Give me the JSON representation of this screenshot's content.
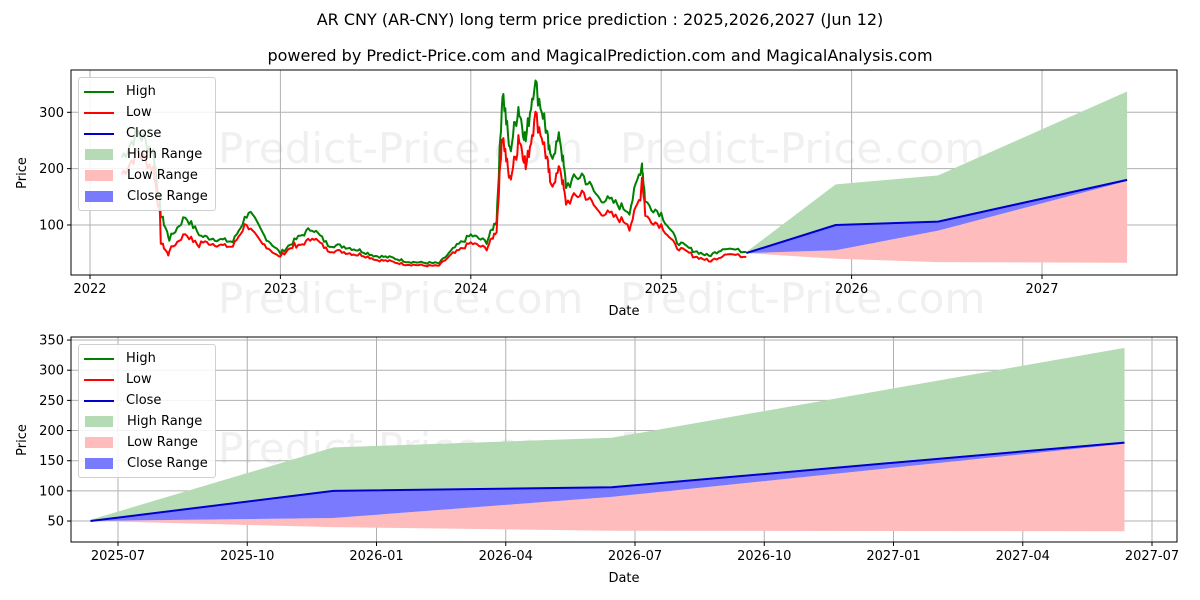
{
  "header": {
    "title": "AR CNY (AR-CNY) long term price prediction : 2025,2026,2027 (Jun 12)",
    "subtitle": "powered by Predict-Price.com and MagicalPrediction.com and MagicalAnalysis.com"
  },
  "watermark": "Predict-Price.com",
  "colors": {
    "high": "#008000",
    "low": "#ff0000",
    "close": "#0000cd",
    "high_range": "#a8d5a8",
    "low_range": "#ffb0b0",
    "close_range": "#7070ff"
  },
  "legend": [
    {
      "label": "High",
      "type": "line",
      "color": "#008000"
    },
    {
      "label": "Low",
      "type": "line",
      "color": "#ff0000"
    },
    {
      "label": "Close",
      "type": "line",
      "color": "#0000cd"
    },
    {
      "label": "High Range",
      "type": "area",
      "color": "#b5dbb5"
    },
    {
      "label": "Low Range",
      "type": "area",
      "color": "#ffbcbc"
    },
    {
      "label": "Close Range",
      "type": "area",
      "color": "#7a7aff"
    }
  ],
  "chart_data": [
    {
      "type": "line",
      "title": "AR CNY (AR-CNY) long term price prediction : 2025,2026,2027 (Jun 12)",
      "xlabel": "Date",
      "ylabel": "Price",
      "x_ticks": [
        "2022",
        "2023",
        "2024",
        "2025",
        "2026",
        "2027"
      ],
      "y_ticks": [
        100,
        200,
        300
      ],
      "ylim": [
        10,
        370
      ],
      "xlim": [
        "2021-11",
        "2027-10"
      ],
      "grid": true,
      "legend_position": "upper left",
      "history": {
        "dates": [
          "2022-03",
          "2022-04",
          "2022-05",
          "2022-05-15",
          "2022-06",
          "2022-07",
          "2022-08",
          "2022-09",
          "2022-10",
          "2022-11",
          "2022-12",
          "2023-01",
          "2023-02",
          "2023-03",
          "2023-04",
          "2023-05",
          "2023-06",
          "2023-07",
          "2023-08",
          "2023-09",
          "2023-10",
          "2023-11",
          "2023-12",
          "2024-01",
          "2024-02",
          "2024-02-20",
          "2024-03",
          "2024-03-15",
          "2024-04",
          "2024-04-15",
          "2024-05",
          "2024-05-20",
          "2024-06",
          "2024-06-20",
          "2024-07",
          "2024-08",
          "2024-09",
          "2024-10",
          "2024-11",
          "2024-11-25",
          "2024-12",
          "2025-01",
          "2025-02",
          "2025-03",
          "2025-04",
          "2025-05",
          "2025-06-12"
        ],
        "high": [
          220,
          265,
          230,
          120,
          75,
          115,
          80,
          75,
          70,
          125,
          80,
          50,
          75,
          95,
          65,
          62,
          55,
          45,
          42,
          35,
          33,
          32,
          60,
          82,
          70,
          110,
          340,
          230,
          310,
          250,
          355,
          290,
          220,
          255,
          170,
          190,
          150,
          140,
          125,
          210,
          140,
          120,
          70,
          55,
          45,
          60,
          52
        ],
        "low": [
          190,
          230,
          200,
          70,
          55,
          85,
          70,
          65,
          62,
          95,
          65,
          45,
          60,
          80,
          55,
          52,
          48,
          38,
          35,
          30,
          28,
          28,
          50,
          68,
          58,
          90,
          260,
          180,
          260,
          200,
          300,
          240,
          170,
          205,
          140,
          160,
          125,
          115,
          95,
          185,
          115,
          100,
          60,
          45,
          35,
          50,
          48
        ]
      },
      "forecast": {
        "dates": [
          "2025-06-12",
          "2025-12-01",
          "2026-06-15",
          "2027-06-12"
        ],
        "high_range_top": [
          52,
          172,
          188,
          337
        ],
        "close": [
          50,
          100,
          106,
          180
        ],
        "close_range_bottom": [
          50,
          55,
          90,
          178
        ],
        "low_range_bottom": [
          50,
          40,
          34,
          33
        ]
      }
    },
    {
      "type": "area",
      "title": "",
      "xlabel": "Date",
      "ylabel": "Price",
      "x_ticks": [
        "2025-07",
        "2025-10",
        "2026-01",
        "2026-04",
        "2026-07",
        "2026-10",
        "2027-01",
        "2027-04",
        "2027-07"
      ],
      "y_ticks": [
        50,
        100,
        150,
        200,
        250,
        300,
        350
      ],
      "ylim": [
        15,
        352
      ],
      "xlim": [
        "2025-05",
        "2027-07-20"
      ],
      "grid": true,
      "legend_position": "upper left",
      "forecast": {
        "dates": [
          "2025-06-12",
          "2025-12-01",
          "2026-06-15",
          "2027-06-12"
        ],
        "high_range_top": [
          52,
          172,
          188,
          337
        ],
        "close": [
          50,
          100,
          106,
          180
        ],
        "close_range_bottom": [
          50,
          55,
          90,
          178
        ],
        "low_range_bottom": [
          50,
          40,
          34,
          33
        ]
      }
    }
  ],
  "top_chart": {
    "ylabel": "Price",
    "xlabel": "Date",
    "x_ticks": [
      "2022",
      "2023",
      "2024",
      "2025",
      "2026",
      "2027"
    ],
    "y_ticks": [
      "100",
      "200",
      "300"
    ]
  },
  "bottom_chart": {
    "ylabel": "Price",
    "xlabel": "Date",
    "x_ticks": [
      "2025-07",
      "2025-10",
      "2026-01",
      "2026-04",
      "2026-07",
      "2026-10",
      "2027-01",
      "2027-04",
      "2027-07"
    ],
    "y_ticks": [
      "50",
      "100",
      "150",
      "200",
      "250",
      "300",
      "350"
    ]
  }
}
